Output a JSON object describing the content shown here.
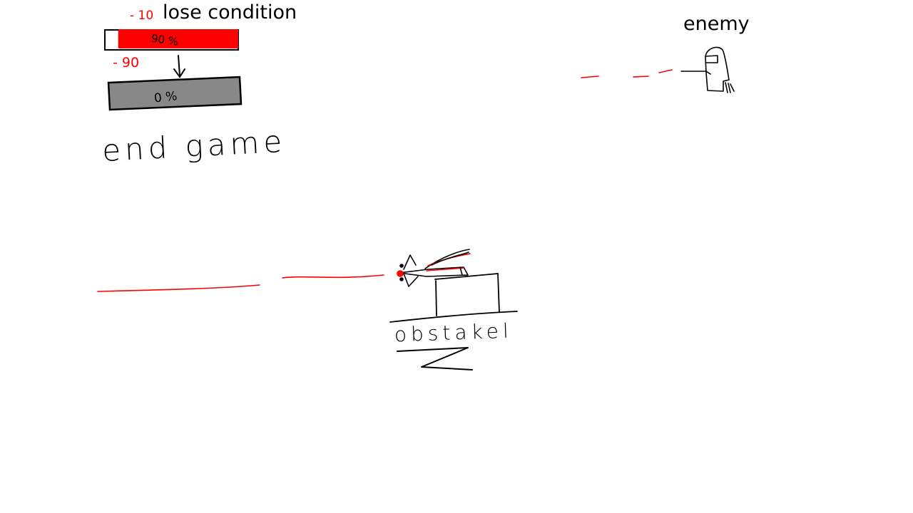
{
  "labels": {
    "lose_condition": "lose condition",
    "enemy": "enemy",
    "end_game": "end game",
    "obstacle": "obstakel"
  },
  "health": {
    "damage_top": "- 10",
    "bar_full_text": "90 %",
    "bar_full_level": 0.9,
    "damage_bottom": "- 90",
    "bar_empty_text": "0 %",
    "bar_empty_level": 0.0
  },
  "colors": {
    "ink": "#000000",
    "health_red": "#ff0000",
    "empty_gray": "#888888",
    "background": "#ffffff"
  }
}
